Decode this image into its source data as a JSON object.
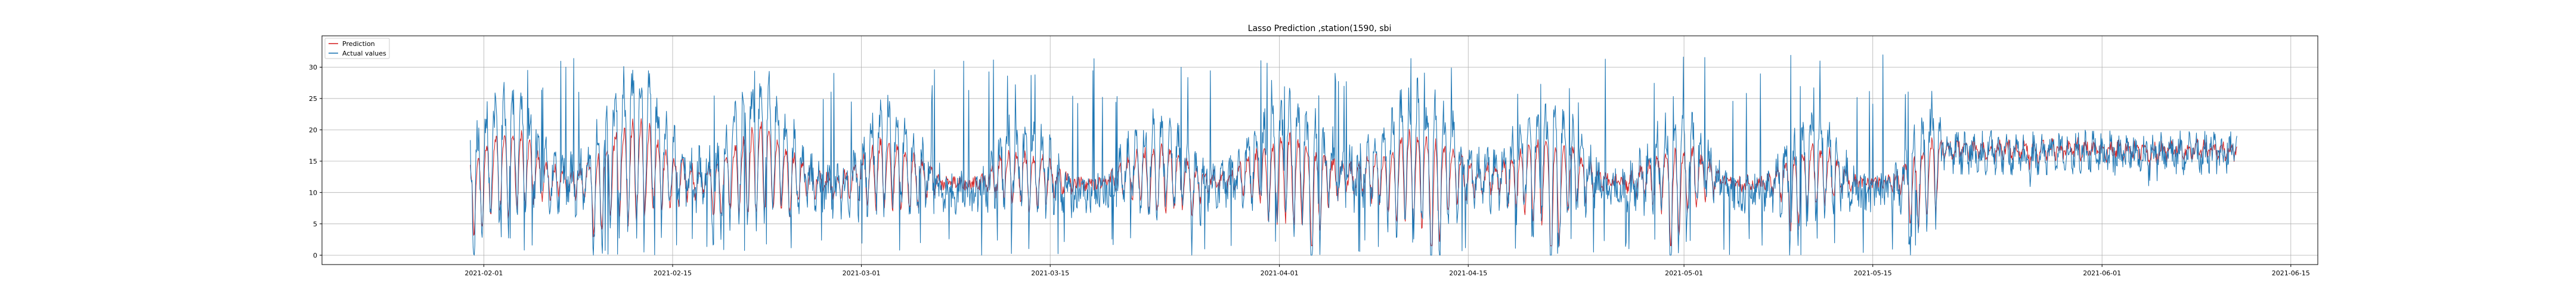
{
  "chart_data": {
    "type": "line",
    "title": "Lasso Prediction ,station(1590, sbi",
    "xlabel": "",
    "ylabel": "",
    "grid": true,
    "legend_placement": "top-left",
    "x_range": [
      "2021-01-20",
      "2021-06-17"
    ],
    "ylim": [
      -1.5,
      35
    ],
    "x_ticks": [
      "2021-02-01",
      "2021-02-15",
      "2021-03-01",
      "2021-03-15",
      "2021-04-01",
      "2021-04-15",
      "2021-05-01",
      "2021-05-15",
      "2021-06-01",
      "2021-06-15"
    ],
    "y_ticks": [
      0,
      5,
      10,
      15,
      20,
      25,
      30
    ],
    "x_start": "2021-01-31",
    "x_end": "2021-06-11",
    "sample_interval_hours": 1,
    "colors": {
      "prediction": "#d62728",
      "actual": "#1f77b4"
    },
    "series": [
      {
        "name": "Prediction",
        "values": [
          14.8,
          13.8,
          12.4,
          11.6,
          9.8,
          7.1,
          5.2,
          4.8,
          6.3,
          8.7,
          11.2,
          13.1,
          14.2,
          14.9,
          15.3,
          15.0,
          14.2,
          12.8,
          11.0,
          9.2,
          7.6,
          6.8,
          7.3,
          8.9,
          11.1,
          12.9,
          14.1,
          14.8,
          15.1,
          15.3,
          15.4,
          15.1,
          14.3,
          12.9,
          11.3,
          9.9,
          9.1,
          9.2,
          10.1,
          11.6,
          13.0,
          14.1,
          14.7,
          15.2,
          15.6,
          15.9,
          16.1,
          15.8,
          14.9,
          13.4,
          11.6,
          10.1,
          9.4,
          9.6,
          10.5,
          11.9,
          13.2,
          14.3,
          15.0,
          15.5,
          15.8,
          15.9,
          15.7,
          15.0,
          13.8,
          12.2,
          10.6,
          9.5,
          9.3,
          10.0,
          11.4,
          12.9,
          14.1,
          15.0,
          15.6,
          16.1,
          16.4,
          16.2,
          15.4,
          14.0,
          12.3,
          10.7,
          9.7,
          9.5,
          10.3,
          11.6,
          13.0,
          14.2,
          15.1,
          15.8,
          16.3,
          16.5,
          16.3,
          15.5,
          14.1,
          12.4,
          10.9,
          9.9,
          9.7,
          10.4,
          11.7,
          13.1,
          14.3,
          15.2,
          15.8,
          16.2,
          16.3,
          16.1,
          15.3,
          14.0,
          12.4,
          10.8,
          9.8,
          9.6,
          10.3,
          11.5,
          12.9,
          14.0,
          14.8,
          15.3,
          15.6,
          15.7,
          15.4,
          14.7,
          13.5,
          12.0,
          10.6,
          9.7,
          9.6,
          10.3,
          11.6,
          12.9,
          14.0,
          14.7,
          15.1,
          15.4,
          15.3,
          14.9,
          14.1,
          12.8,
          11.2,
          9.8,
          8.9,
          8.8,
          9.6,
          11.0,
          12.5,
          13.7,
          14.5,
          15.0,
          15.2,
          15.2,
          14.8,
          14.0,
          12.7,
          11.2,
          9.9,
          9.1,
          9.0,
          9.8,
          11.2,
          12.7,
          13.9,
          14.7,
          15.2,
          15.5,
          15.6,
          15.3,
          14.5,
          13.2,
          11.7,
          10.3,
          9.4,
          9.3,
          10.0,
          11.4,
          12.8,
          14.0,
          14.8,
          15.3,
          15.6,
          15.6,
          15.2,
          14.3,
          13.0,
          11.4,
          10.0,
          9.1,
          9.0,
          9.8,
          11.2,
          12.6,
          13.8,
          14.6,
          15.1,
          15.3,
          15.3,
          14.9,
          14.1,
          12.8,
          11.3,
          9.9,
          9.0,
          8.9,
          9.7,
          11.1,
          12.6,
          13.8,
          14.6,
          15.1,
          15.3,
          15.2,
          14.8
        ],
        "values_note_unused": ""
      },
      {
        "name": "Actual values",
        "values": [
          15.2,
          14.0,
          12.0,
          10.0,
          7.0,
          4.0,
          2.0,
          3.0,
          6.0,
          10.0,
          13.0,
          15.0,
          16.0,
          16.0,
          16.0,
          15.0,
          14.0,
          12.0,
          10.0,
          8.0,
          6.0,
          5.0,
          6.0,
          9.0,
          12.0,
          14.0,
          15.0,
          16.0,
          16.0,
          16.0,
          16.0,
          15.0,
          14.0,
          12.0,
          10.0,
          8.0,
          8.0,
          8.0,
          10.0,
          12.0,
          14.0,
          15.0,
          16.0,
          16.0,
          17.0,
          17.0,
          17.0,
          16.0,
          15.0,
          13.0,
          11.0,
          9.0,
          8.0,
          9.0,
          10.0,
          12.0,
          14.0,
          15.0,
          16.0,
          16.0,
          17.0,
          17.0,
          16.0,
          15.0,
          14.0,
          12.0,
          10.0,
          8.0,
          8.0,
          9.0,
          11.0,
          13.0,
          15.0,
          16.0,
          17.0,
          17.0,
          17.0,
          17.0,
          16.0,
          14.0,
          12.0,
          10.0,
          9.0,
          8.0,
          9.0,
          11.0,
          13.0,
          15.0,
          16.0,
          17.0,
          17.0,
          17.0,
          17.0,
          16.0,
          14.0,
          12.0,
          10.0,
          9.0,
          9.0,
          10.0,
          12.0,
          14.0,
          15.0,
          16.0,
          17.0,
          17.0,
          17.0,
          17.0,
          16.0,
          14.0,
          12.0,
          10.0,
          9.0,
          9.0,
          10.0,
          11.0,
          13.0,
          15.0,
          16.0,
          16.0,
          16.0,
          16.0,
          16.0,
          15.0,
          13.0,
          12.0,
          10.0,
          9.0,
          9.0,
          10.0,
          11.0,
          13.0,
          14.0,
          15.0,
          16.0,
          16.0,
          16.0,
          15.0,
          14.0,
          13.0,
          11.0,
          9.0,
          8.0,
          8.0,
          9.0,
          11.0,
          13.0,
          14.0,
          15.0,
          16.0,
          16.0,
          16.0,
          15.0,
          14.0,
          13.0,
          11.0,
          9.0,
          8.0,
          8.0,
          9.0,
          11.0,
          13.0,
          14.0,
          15.0,
          16.0,
          16.0,
          16.0,
          15.0,
          14.0,
          13.0,
          11.0,
          10.0,
          9.0,
          9.0,
          10.0,
          11.0,
          13.0,
          14.0,
          15.0,
          16.0,
          16.0,
          16.0,
          15.0,
          14.0,
          13.0,
          11.0,
          9.0,
          8.0,
          8.0,
          9.0,
          11.0,
          13.0,
          14.0,
          15.0,
          16.0,
          16.0,
          16.0,
          15.0,
          14.0,
          12.0,
          11.0,
          9.0,
          8.0,
          8.0,
          9.0,
          11.0,
          13.0,
          14.0,
          15.0,
          15.0,
          16.0,
          15.0,
          15.0
        ]
      }
    ]
  }
}
